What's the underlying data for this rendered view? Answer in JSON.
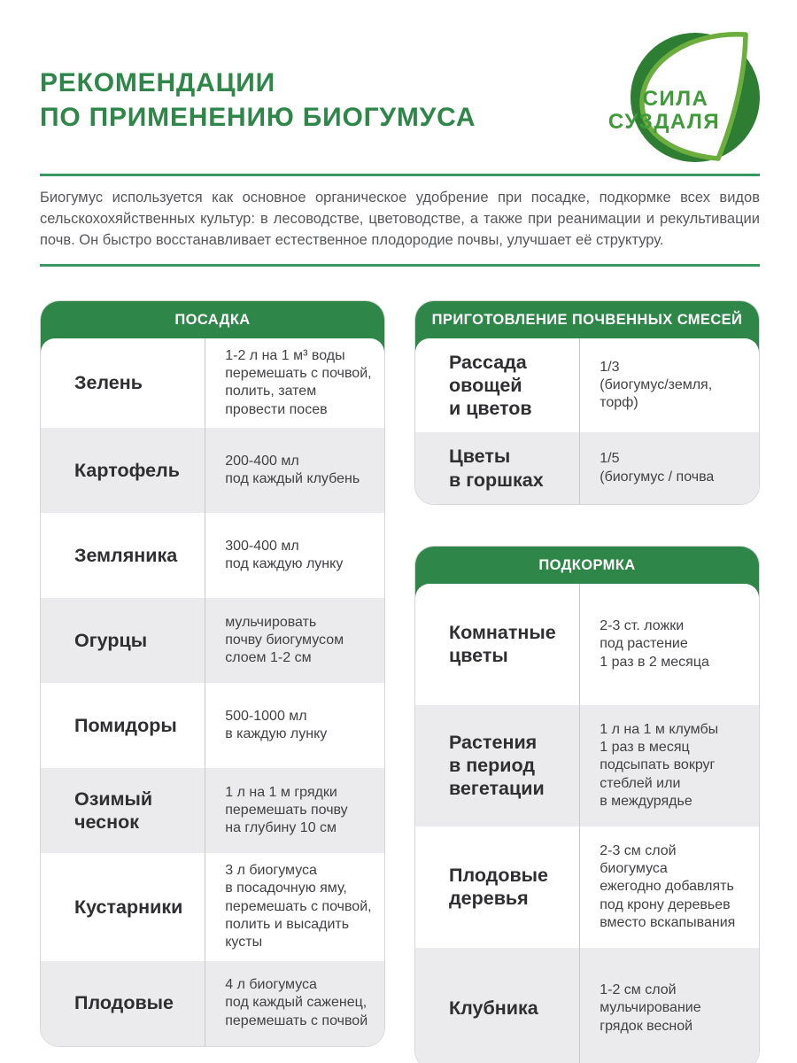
{
  "colors": {
    "green": "#2E8748",
    "rule": "#38985F",
    "row_gray": "#EBEBED",
    "logo_circle": "#2D7D33",
    "logo_leaf_stroke": "#6CAE3E",
    "logo_text": "#3E9B38"
  },
  "header": {
    "title_line1": "РЕКОМЕНДАЦИИ",
    "title_line2": "ПО ПРИМЕНЕНИЮ БИОГУМУСА",
    "logo_line1": "СИЛА",
    "logo_line2": "СУЗДАЛЯ"
  },
  "intro": "Биогумус используется как основное органическое удобрение при посадке, подкормке всех видов сельскохохяйственных культур: в лесоводстве, цветоводстве, а также при реанимации и рекультивации почв. Он быстро восстанавливает естественное плодородие почвы, улучшает её структуру.",
  "tables": [
    {
      "id": "posadka",
      "header": "ПОСАДКА",
      "rows": [
        {
          "label": "Зелень",
          "value": "1-2 л на 1 м³ воды\nперемешать с почвой,\nполить, затем\nпровести посев"
        },
        {
          "label": "Картофель",
          "value": "200-400 мл\nпод каждый клубень"
        },
        {
          "label": "Земляника",
          "value": "300-400 мл\nпод каждую лунку"
        },
        {
          "label": "Огурцы",
          "value": "мульчировать\nпочву биогумусом\nслоем 1-2 см"
        },
        {
          "label": "Помидоры",
          "value": "500-1000 мл\nв каждую лунку"
        },
        {
          "label": "Озимый\nчеснок",
          "value": "1 л на 1 м грядки\nперемешать почву\nна глубину 10 см"
        },
        {
          "label": "Кустарники",
          "value": "3 л биогумуса\nв посадочную яму,\nперемешать с почвой,\nполить и высадить\nкусты"
        },
        {
          "label": "Плодовые",
          "value": "4 л биогумуса\nпод каждый саженец,\nперемешать с почвой"
        }
      ]
    },
    {
      "id": "smesi",
      "header": "ПРИГОТОВЛЕНИЕ ПОЧВЕННЫХ СМЕСЕЙ",
      "rows": [
        {
          "label": "Рассада овощей\nи цветов",
          "value": "1/3\n(биогумус/земля,\nторф)"
        },
        {
          "label": "Цветы\nв горшках",
          "value": "1/5\n(биогумус / почва"
        }
      ]
    },
    {
      "id": "podkormka",
      "header": "ПОДКОРМКА",
      "rows": [
        {
          "label": "Комнатные\nцветы",
          "value": "2-3 ст. ложки\nпод растение\n1 раз в 2 месяца"
        },
        {
          "label": "Растения\nв период\nвегетации",
          "value": "1 л на 1 м клумбы\n1 раз в месяц\nподсыпать вокруг\nстеблей или\nв междурядье"
        },
        {
          "label": "Плодовые\nдеревья",
          "value": "2-3 см слой\nбиогумуса\nежегодно добавлять\nпод крону деревьев\nвместо вскапывания"
        },
        {
          "label": "Клубника",
          "value": "1-2 см слой\nмульчирование\nгрядок весной"
        }
      ]
    }
  ]
}
